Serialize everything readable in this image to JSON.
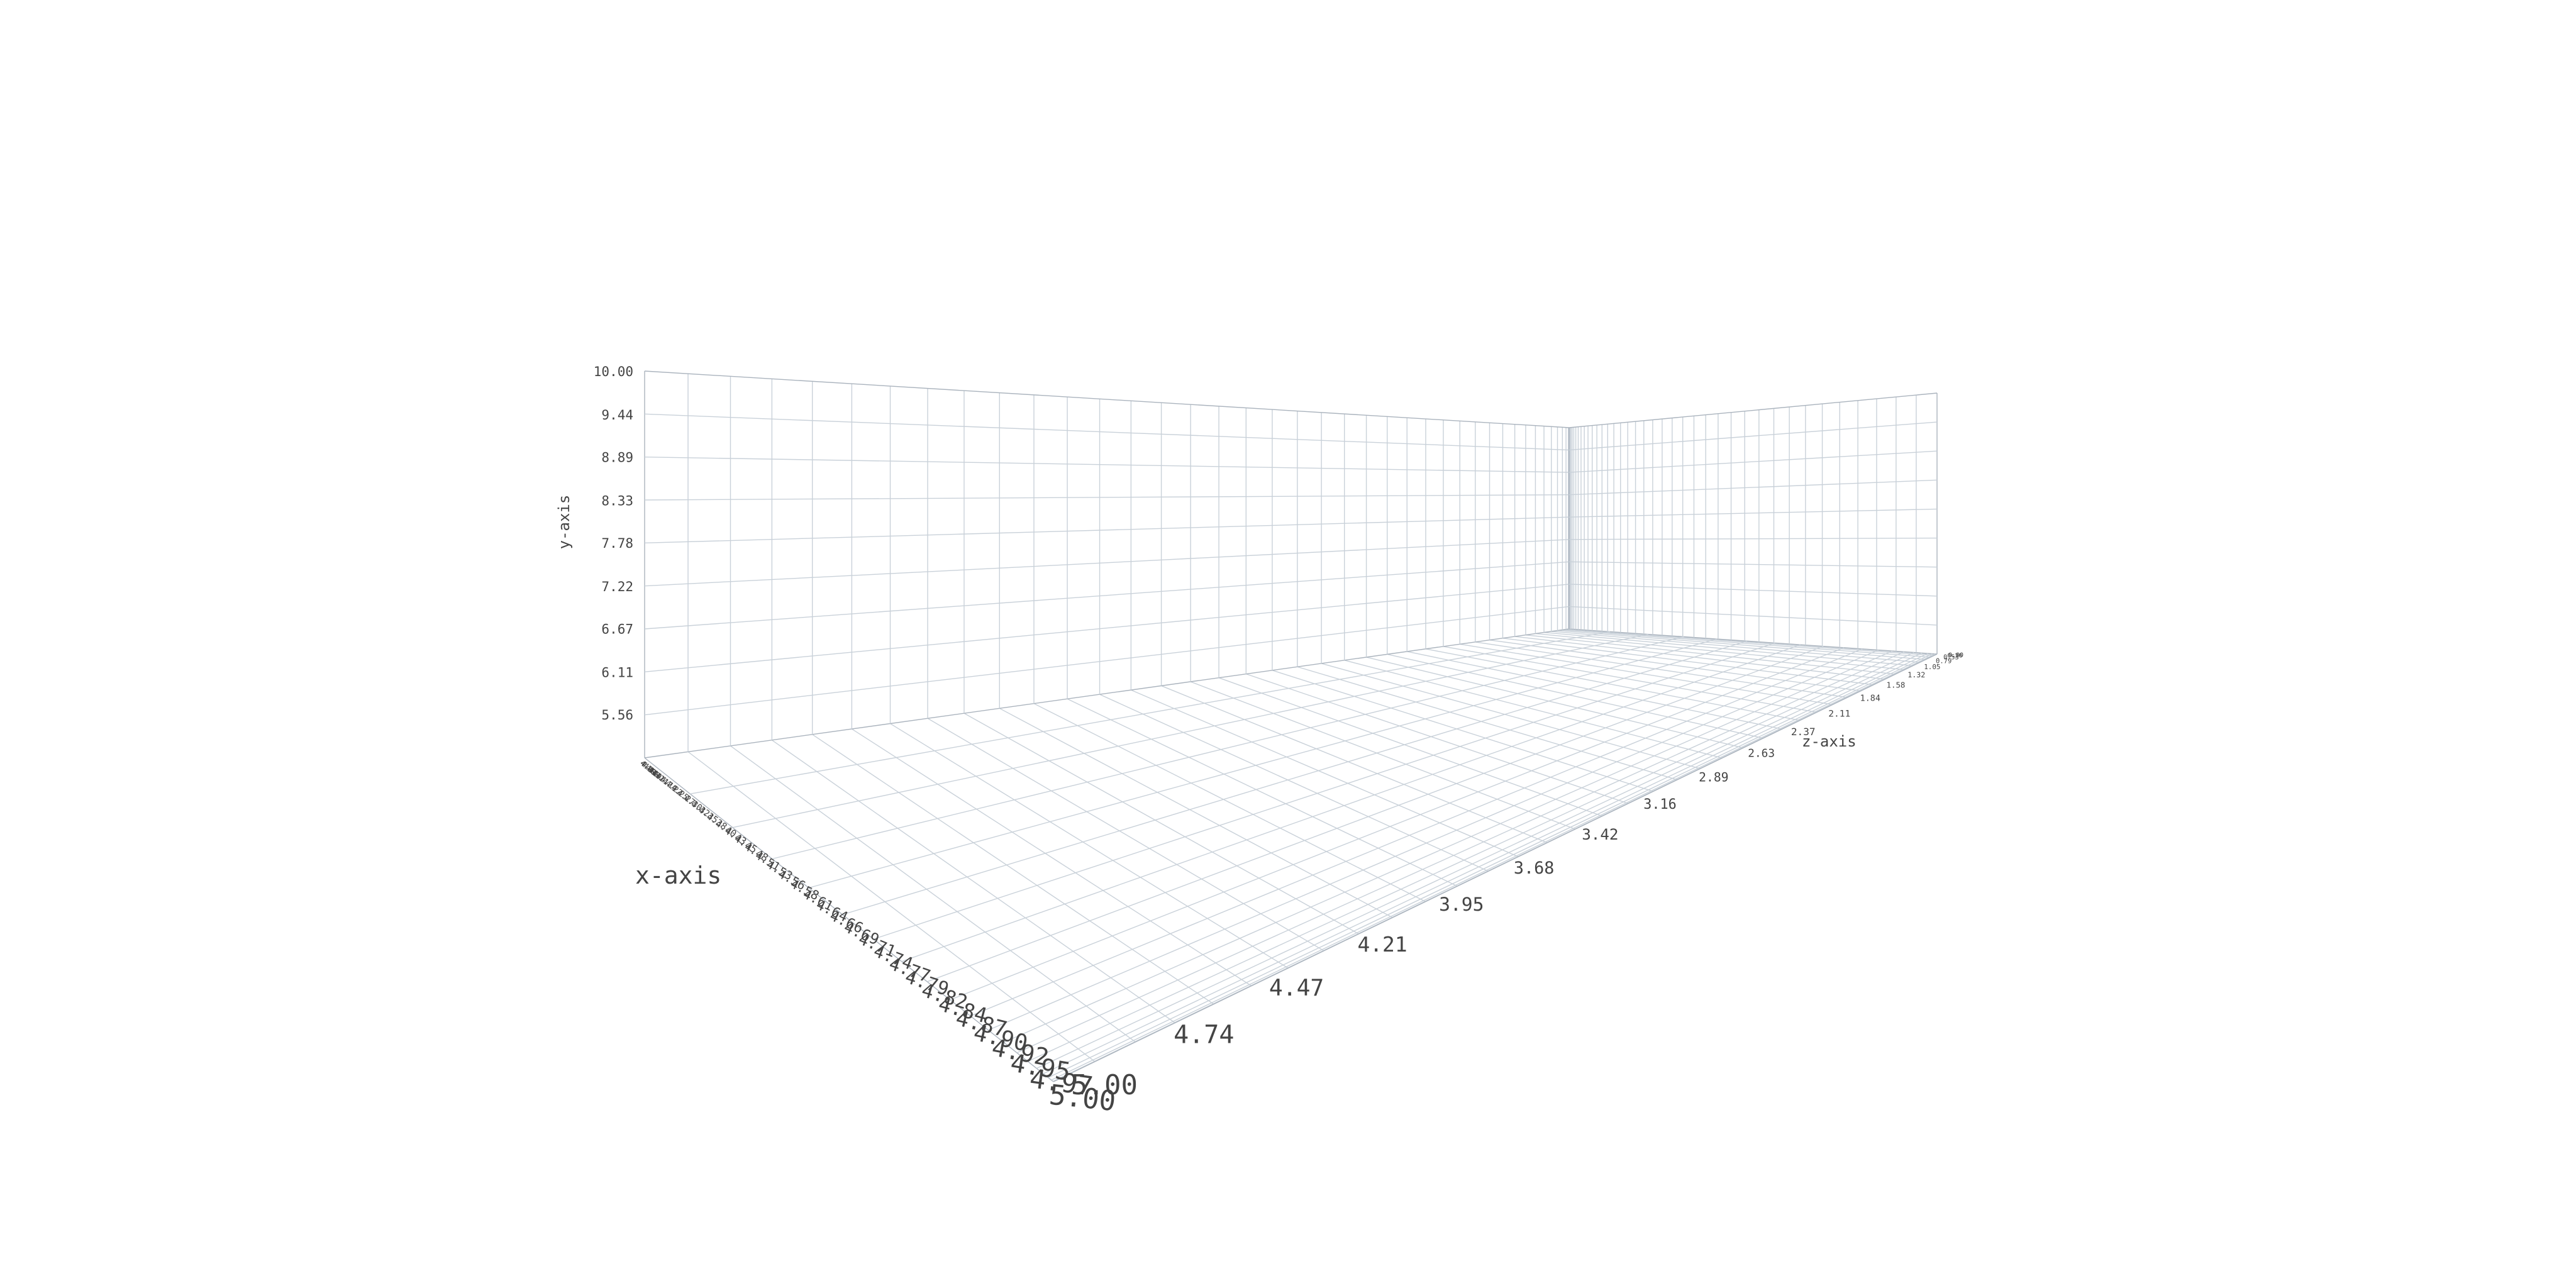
{
  "chart_data": {
    "type": "scatter",
    "title": "",
    "series": [],
    "axes": {
      "x": {
        "label": "x-axis",
        "range": [
          5.0,
          4.0
        ],
        "ticks": [
          "5.00",
          "4.97",
          "4.95",
          "4.92",
          "4.90",
          "4.87",
          "4.84",
          "4.82",
          "4.79",
          "4.77",
          "4.74",
          "4.71",
          "4.69",
          "4.66",
          "4.64",
          "4.61",
          "4.58",
          "4.56",
          "4.53",
          "4.51",
          "4.48",
          "4.45",
          "4.43",
          "4.40",
          "4.38",
          "4.35",
          "4.32",
          "4.30",
          "4.27",
          "4.25",
          "4.22",
          "4.19",
          "4.17",
          "4.14",
          "4.12",
          "4.09",
          "4.06",
          "4.04",
          "4.01",
          "4.00"
        ]
      },
      "y": {
        "label": "y-axis",
        "range": [
          5.0,
          10.0
        ],
        "ticks": [
          "5.56",
          "6.11",
          "6.67",
          "7.22",
          "7.78",
          "8.33",
          "8.89",
          "9.44",
          "10.00"
        ]
      },
      "z": {
        "label": "z-axis",
        "range": [
          5.0,
          0.0
        ],
        "ticks": [
          "5.00",
          "4.74",
          "4.47",
          "4.21",
          "3.95",
          "3.68",
          "3.42",
          "3.16",
          "2.89",
          "2.63",
          "2.37",
          "2.11",
          "1.84",
          "1.58",
          "1.32",
          "1.05",
          "0.79",
          "0.53",
          "0.26",
          "0.00"
        ]
      }
    },
    "grid": true,
    "legend": "none"
  }
}
